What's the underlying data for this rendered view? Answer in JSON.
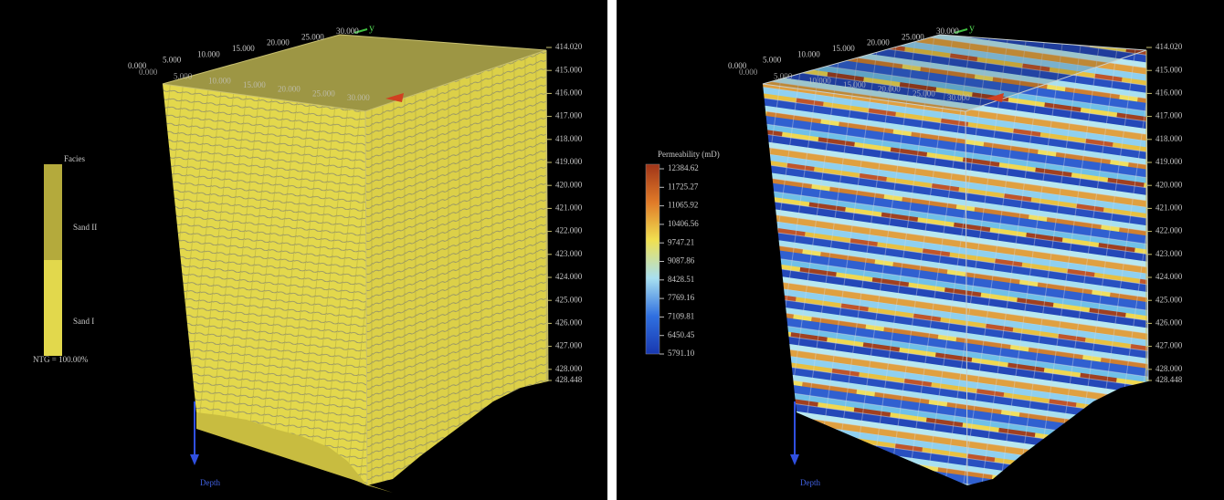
{
  "panels": [
    {
      "y_axis_label": "y",
      "top_ticks": [
        "0.000",
        "5.000",
        "10.000",
        "15.000",
        "20.000",
        "25.000",
        "30.000"
      ],
      "front_ticks": [
        "0.000",
        "5.000",
        "10.000",
        "15.000",
        "20.000",
        "25.000",
        "30.000"
      ],
      "depth_ticks": [
        "414.020",
        "415.000",
        "416.000",
        "417.000",
        "418.000",
        "419.000",
        "420.000",
        "421.000",
        "422.000",
        "423.000",
        "424.000",
        "425.000",
        "426.000",
        "427.000",
        "428.000",
        "428.448"
      ],
      "depth_label": "Depth",
      "legend": {
        "title": "Facies",
        "items": [
          "Sand II",
          "Sand I"
        ],
        "note": "NTG = 100.00%"
      }
    },
    {
      "y_axis_label": "y",
      "top_ticks": [
        "0.000",
        "5.000",
        "10.000",
        "15.000",
        "20.000",
        "25.000",
        "30.000"
      ],
      "front_ticks": [
        "0.000",
        "5.000",
        "10.000",
        "15.000",
        "20.000",
        "25.000",
        "30.000"
      ],
      "depth_ticks": [
        "414.020",
        "415.000",
        "416.000",
        "417.000",
        "418.000",
        "419.000",
        "420.000",
        "421.000",
        "422.000",
        "423.000",
        "424.000",
        "425.000",
        "426.000",
        "427.000",
        "428.000",
        "428.448"
      ],
      "depth_label": "Depth",
      "legend": {
        "title": "Permeability (mD)",
        "ticks": [
          "12384.62",
          "11725.27",
          "11065.92",
          "10406.56",
          "9747.21",
          "9087.86",
          "8428.51",
          "7769.16",
          "7109.81",
          "6450.45",
          "5791.10"
        ]
      }
    }
  ]
}
